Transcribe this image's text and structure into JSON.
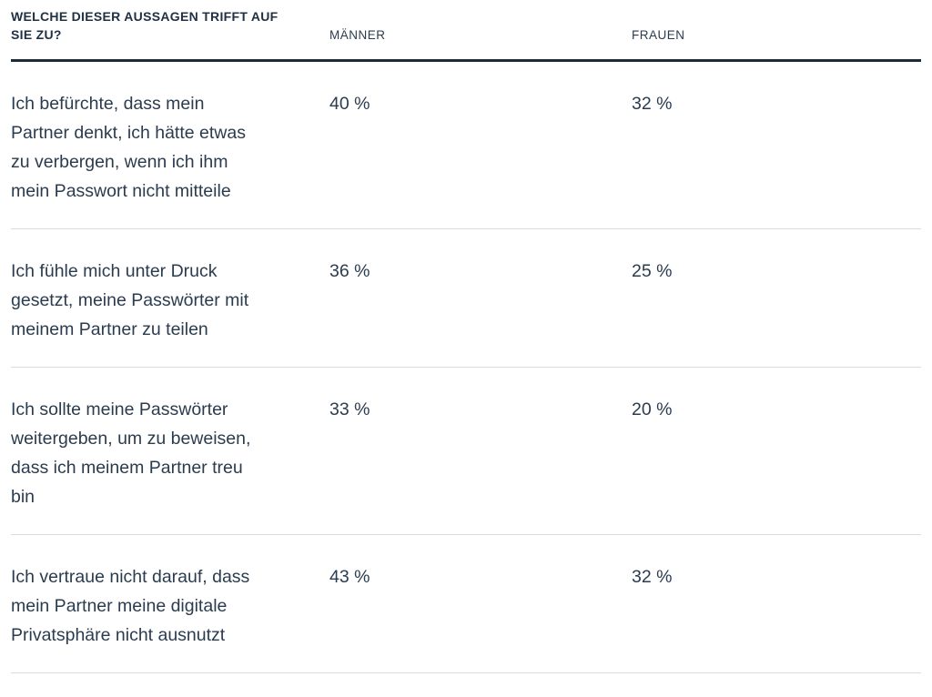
{
  "colors": {
    "text": "#2b3c4f",
    "header_rule": "#1c2b3a",
    "row_divider": "#d9dde2",
    "background": "#ffffff"
  },
  "table": {
    "question_header": "WELCHE DIESER AUSSAGEN TRIFFT AUF\nSIE ZU?",
    "columns": [
      "MÄNNER",
      "FRAUEN"
    ],
    "rows": [
      {
        "statement": "Ich befürchte, dass mein\nPartner denkt, ich hätte etwas\nzu verbergen, wenn ich ihm\nmein Passwort nicht mitteile",
        "maenner": "40 %",
        "frauen": "32 %"
      },
      {
        "statement": "Ich fühle mich unter Druck\ngesetzt, meine Passwörter mit\nmeinem Partner zu teilen",
        "maenner": "36 %",
        "frauen": "25 %"
      },
      {
        "statement": "Ich sollte meine Passwörter\nweitergeben, um zu beweisen,\ndass ich meinem Partner treu\nbin",
        "maenner": "33 %",
        "frauen": "20 %"
      },
      {
        "statement": "Ich vertraue nicht darauf, dass\nmein Partner meine digitale\nPrivatsphäre nicht ausnutzt",
        "maenner": "43 %",
        "frauen": "32 %"
      }
    ]
  },
  "chart_data": {
    "type": "table",
    "title": "WELCHE DIESER AUSSAGEN TRIFFT AUF SIE ZU?",
    "categories": [
      "Ich befürchte, dass mein Partner denkt, ich hätte etwas zu verbergen, wenn ich ihm mein Passwort nicht mitteile",
      "Ich fühle mich unter Druck gesetzt, meine Passwörter mit meinem Partner zu teilen",
      "Ich sollte meine Passwörter weitergeben, um zu beweisen, dass ich meinem Partner treu bin",
      "Ich vertraue nicht darauf, dass mein Partner meine digitale Privatsphäre nicht ausnutzt"
    ],
    "series": [
      {
        "name": "MÄNNER",
        "values": [
          40,
          36,
          33,
          43
        ],
        "unit": "%"
      },
      {
        "name": "FRAUEN",
        "values": [
          32,
          25,
          20,
          32
        ],
        "unit": "%"
      }
    ]
  }
}
